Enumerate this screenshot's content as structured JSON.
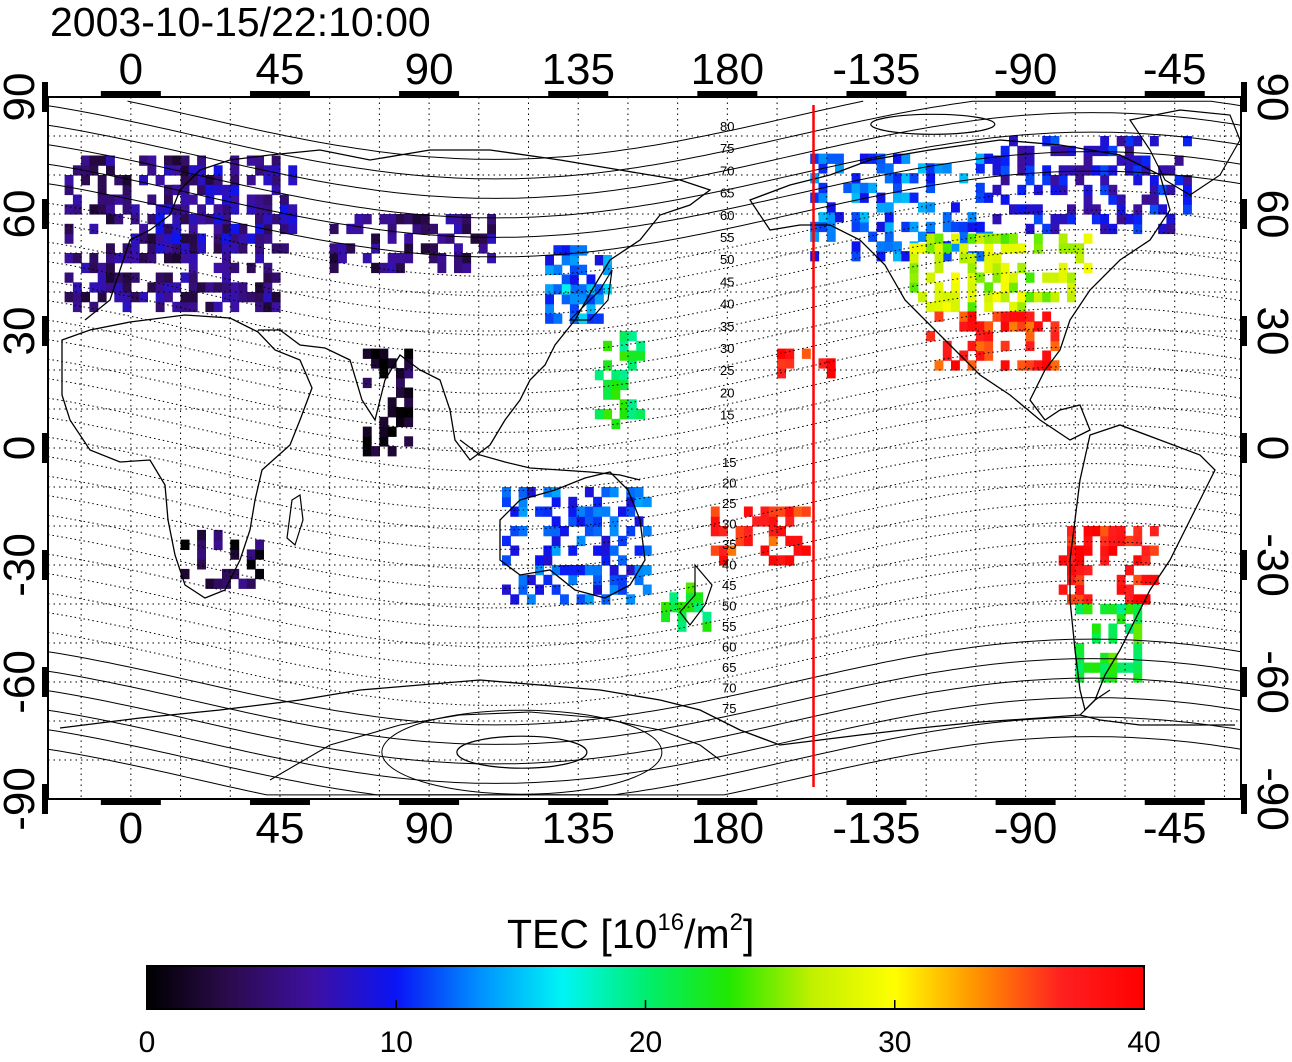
{
  "title": "2003-10-15/22:10:00",
  "map": {
    "lon_range": [
      -25,
      335
    ],
    "lat_range": [
      -90,
      90
    ],
    "lon_tick_labels": [
      "0",
      "45",
      "90",
      "135",
      "180",
      "-135",
      "-90",
      "-45"
    ],
    "lon_tick_values": [
      0,
      45,
      90,
      135,
      180,
      225,
      270,
      315
    ],
    "lat_tick_labels": [
      "90",
      "60",
      "30",
      "0",
      "-30",
      "-60",
      "-90"
    ],
    "lat_tick_values": [
      90,
      60,
      30,
      0,
      -30,
      -60,
      -90
    ],
    "marker_line_lon": 206,
    "marker_line_color": "#ff0000",
    "grid_lon_step": 15,
    "grid_lat_step": 10,
    "grid": true,
    "magnetic_latitude_labels_north": [
      "80",
      "75",
      "70",
      "65",
      "60",
      "55",
      "50",
      "45",
      "40",
      "35",
      "30",
      "25",
      "20",
      "15"
    ],
    "magnetic_latitude_labels_south": [
      "15",
      "20",
      "25",
      "30",
      "35",
      "40",
      "45",
      "50",
      "55",
      "60",
      "65",
      "70",
      "75"
    ]
  },
  "colorbar": {
    "label": "TEC  [10",
    "label_exp1": "16",
    "label_mid": "/m",
    "label_exp2": "2",
    "label_end": "]",
    "min": 0,
    "max": 40,
    "tick_labels": [
      "0",
      "10",
      "20",
      "30",
      "40"
    ],
    "tick_values": [
      0,
      10,
      20,
      30,
      40
    ],
    "colors": [
      "#000000",
      "#2c0b4e",
      "#3d10a0",
      "#0a14f5",
      "#0090ff",
      "#00f5f5",
      "#00ee70",
      "#20e800",
      "#c0f000",
      "#ffff00",
      "#ff9000",
      "#ff2020",
      "#ff0000"
    ]
  },
  "chart_data": {
    "type": "heatmap",
    "title": "2003-10-15/22:10:00",
    "value_label": "TEC  [10^16/m^2]",
    "xlabel": "",
    "ylabel": "",
    "xlim": [
      -25,
      335
    ],
    "ylim": [
      -90,
      90
    ],
    "vmin": 0,
    "vmax": 40,
    "regions": [
      {
        "lon": [
          -20,
          45
        ],
        "lat": [
          35,
          75
        ],
        "tec": 5
      },
      {
        "lon": [
          5,
          50
        ],
        "lat": [
          50,
          72
        ],
        "tec": 7
      },
      {
        "lon": [
          15,
          40
        ],
        "lat": [
          -36,
          -22
        ],
        "tec": 3
      },
      {
        "lon": [
          60,
          110
        ],
        "lat": [
          45,
          60
        ],
        "tec": 5
      },
      {
        "lon": [
          70,
          85
        ],
        "lat": [
          -2,
          25
        ],
        "tec": 2
      },
      {
        "lon": [
          125,
          145
        ],
        "lat": [
          32,
          50
        ],
        "tec": 12
      },
      {
        "lon": [
          130,
          145
        ],
        "lat": [
          32,
          42
        ],
        "tec": 14
      },
      {
        "lon": [
          140,
          155
        ],
        "lat": [
          5,
          30
        ],
        "tec": 21
      },
      {
        "lon": [
          112,
          155
        ],
        "lat": [
          -40,
          -12
        ],
        "tec": 11
      },
      {
        "lon": [
          160,
          175
        ],
        "lat": [
          -47,
          -35
        ],
        "tec": 22
      },
      {
        "lon": [
          175,
          205
        ],
        "lat": [
          -30,
          -15
        ],
        "tec": 37
      },
      {
        "lon": [
          195,
          215
        ],
        "lat": [
          18,
          25
        ],
        "tec": 38
      },
      {
        "lon": [
          205,
          260
        ],
        "lat": [
          48,
          75
        ],
        "tec": 12
      },
      {
        "lon": [
          235,
          290
        ],
        "lat": [
          35,
          55
        ],
        "tec": 27
      },
      {
        "lon": [
          240,
          280
        ],
        "lat": [
          20,
          35
        ],
        "tec": 37
      },
      {
        "lon": [
          280,
          310
        ],
        "lat": [
          -40,
          -20
        ],
        "tec": 38
      },
      {
        "lon": [
          285,
          305
        ],
        "lat": [
          -60,
          -40
        ],
        "tec": 22
      },
      {
        "lon": [
          260,
          320
        ],
        "lat": [
          55,
          80
        ],
        "tec": 9
      }
    ]
  }
}
